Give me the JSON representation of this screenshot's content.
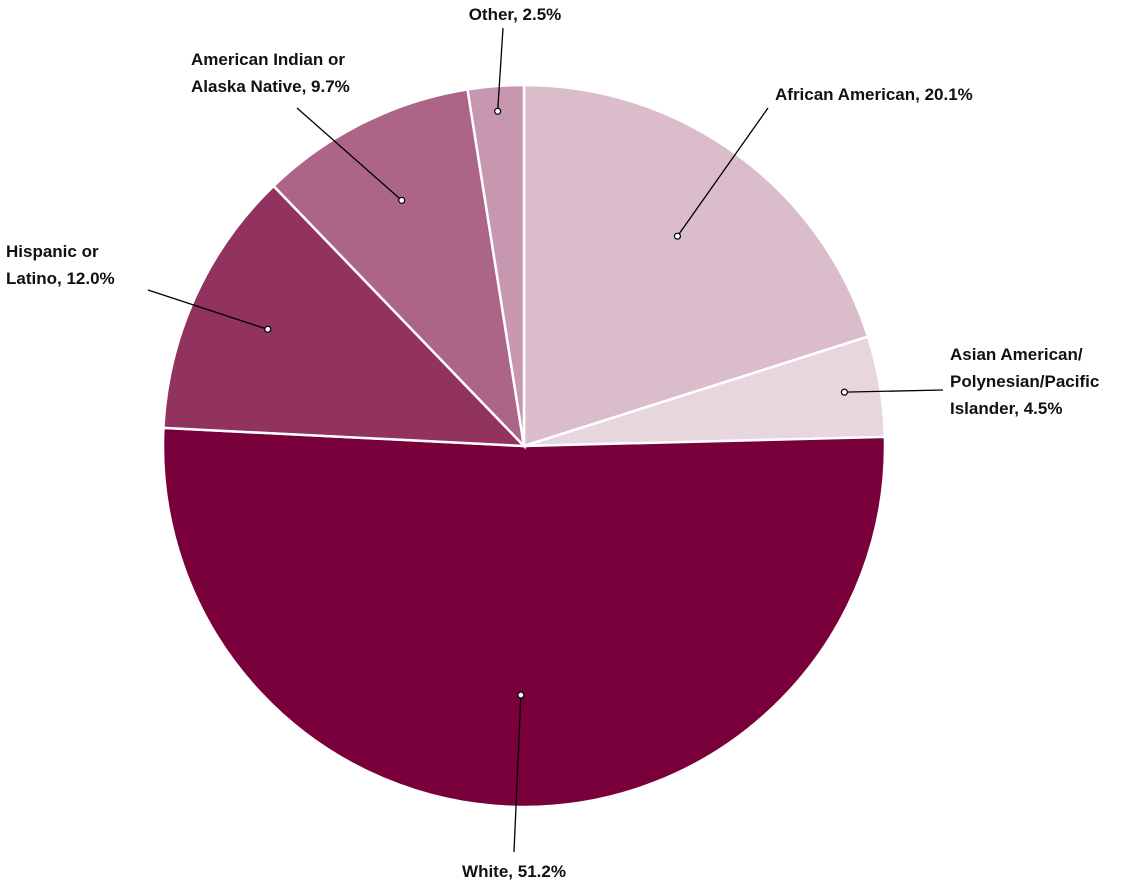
{
  "chart_data": {
    "type": "pie",
    "title": "",
    "slices": [
      {
        "label": "African American",
        "value": 20.1,
        "display": "African American, 20.1%",
        "color": "#dbbccb"
      },
      {
        "label": "Asian American/ Polynesian/Pacific Islander",
        "value": 4.5,
        "display": "Asian American/ Polynesian/Pacific Islander, 4.5%",
        "color": "#e8d6de"
      },
      {
        "label": "White",
        "value": 51.2,
        "display": "White, 51.2%",
        "color": "#79003a"
      },
      {
        "label": "Hispanic or Latino",
        "value": 12.0,
        "display": "Hispanic or Latino, 12.0%",
        "color": "#91325f"
      },
      {
        "label": "American Indian or Alaska Native",
        "value": 9.7,
        "display": "American Indian or Alaska Native, 9.7%",
        "color": "#ac6587"
      },
      {
        "label": "Other",
        "value": 2.5,
        "display": "Other, 2.5%",
        "color": "#c797af"
      }
    ],
    "start_angle": "12 o'clock",
    "direction": "clockwise",
    "legend": "none",
    "units": "%"
  }
}
